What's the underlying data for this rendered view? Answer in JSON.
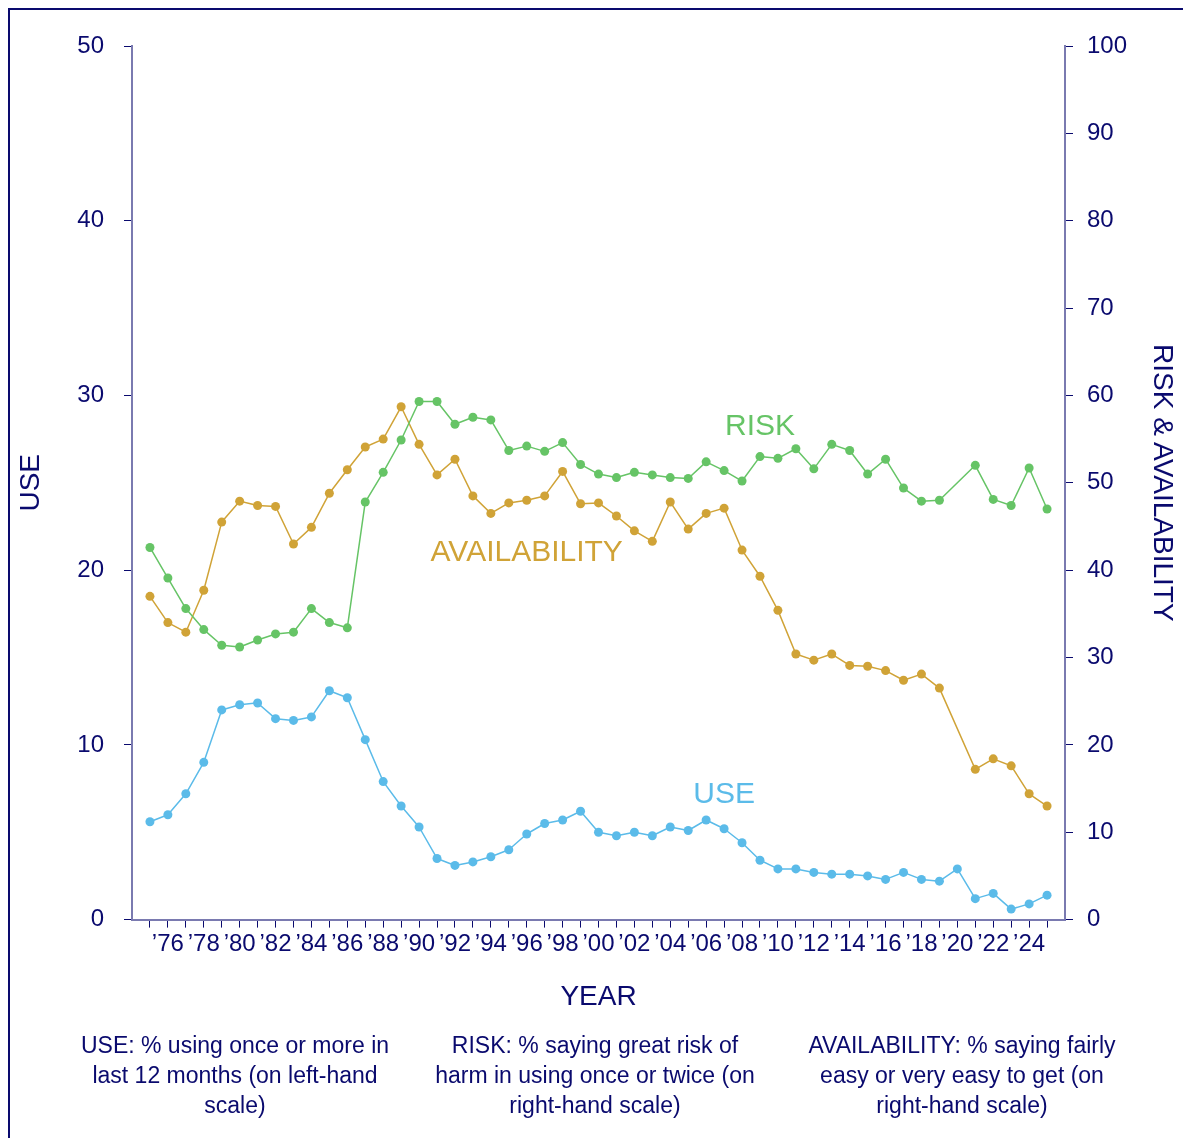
{
  "chart_data": {
    "type": "line",
    "xlabel": "YEAR",
    "ylabel": "USE",
    "y2label": "RISK & AVAILABILITY",
    "x": [
      1975,
      1976,
      1977,
      1978,
      1979,
      1980,
      1981,
      1982,
      1983,
      1984,
      1985,
      1986,
      1987,
      1988,
      1989,
      1990,
      1991,
      1992,
      1993,
      1994,
      1995,
      1996,
      1997,
      1998,
      1999,
      2000,
      2001,
      2002,
      2003,
      2004,
      2005,
      2006,
      2007,
      2008,
      2009,
      2010,
      2011,
      2012,
      2013,
      2014,
      2015,
      2016,
      2017,
      2018,
      2019,
      2020,
      2021,
      2022,
      2023,
      2024,
      2025
    ],
    "series": [
      {
        "name": "USE",
        "color": "#5bbbe9",
        "values": [
          5.6,
          6.0,
          7.2,
          9.0,
          12.0,
          12.3,
          12.4,
          11.5,
          11.4,
          11.6,
          13.1,
          12.7,
          10.3,
          7.9,
          6.5,
          5.3,
          3.5,
          3.1,
          3.3,
          3.6,
          4.0,
          4.9,
          5.5,
          5.7,
          6.2,
          5.0,
          4.8,
          5.0,
          4.8,
          5.3,
          5.1,
          5.7,
          5.2,
          4.4,
          3.4,
          2.9,
          2.9,
          2.7,
          2.6,
          2.6,
          2.5,
          2.3,
          2.7,
          2.3,
          2.2,
          2.9,
          1.2,
          1.5,
          0.6,
          0.9,
          1.4
        ]
      },
      {
        "name": "RISK",
        "color": "#66c466",
        "axis": "y2",
        "x": [
          1975,
          1976,
          1977,
          1978,
          1979,
          1980,
          1981,
          1982,
          1983,
          1984,
          1985,
          1986,
          1987,
          1988,
          1989,
          1990,
          1991,
          1992,
          1993,
          1994,
          1995,
          1996,
          1997,
          1998,
          1999,
          2000,
          2001,
          2002,
          2003,
          2004,
          2005,
          2006,
          2007,
          2008,
          2009,
          2010,
          2011,
          2012,
          2013,
          2014,
          2015,
          2016,
          2017,
          2018,
          2019,
          2021,
          2022,
          2023,
          2024,
          2025
        ],
        "values": [
          42.6,
          39.1,
          35.6,
          33.2,
          31.4,
          31.2,
          32.0,
          32.7,
          32.9,
          35.6,
          34.0,
          33.4,
          47.8,
          51.2,
          54.9,
          59.3,
          59.3,
          56.7,
          57.5,
          57.2,
          53.7,
          54.2,
          53.6,
          54.6,
          52.1,
          51.0,
          50.6,
          51.2,
          50.9,
          50.6,
          50.5,
          52.4,
          51.4,
          50.2,
          53.0,
          52.8,
          53.9,
          51.6,
          54.4,
          53.7,
          51.0,
          52.7,
          49.4,
          47.9,
          48.0,
          52.0,
          48.1,
          47.4,
          51.7,
          47.0
        ]
      },
      {
        "name": "AVAILABILITY",
        "color": "#d0a337",
        "axis": "y2",
        "x": [
          1975,
          1976,
          1977,
          1978,
          1979,
          1980,
          1981,
          1982,
          1983,
          1984,
          1985,
          1986,
          1987,
          1988,
          1989,
          1990,
          1991,
          1992,
          1993,
          1994,
          1995,
          1996,
          1997,
          1998,
          1999,
          2000,
          2001,
          2002,
          2003,
          2004,
          2005,
          2006,
          2007,
          2008,
          2009,
          2010,
          2011,
          2012,
          2013,
          2014,
          2015,
          2016,
          2017,
          2018,
          2019,
          2021,
          2022,
          2023,
          2024,
          2025
        ],
        "values": [
          37.0,
          34.0,
          32.9,
          37.7,
          45.5,
          47.9,
          47.4,
          47.3,
          43.0,
          44.9,
          48.8,
          51.5,
          54.1,
          55.0,
          58.7,
          54.4,
          50.9,
          52.7,
          48.5,
          46.5,
          47.7,
          48.0,
          48.5,
          51.3,
          47.6,
          47.7,
          46.2,
          44.5,
          43.3,
          47.8,
          44.7,
          46.5,
          47.1,
          42.3,
          39.3,
          35.4,
          30.4,
          29.7,
          30.4,
          29.1,
          29.0,
          28.5,
          27.4,
          28.1,
          26.5,
          17.2,
          18.4,
          17.6,
          14.4,
          13.0
        ]
      }
    ],
    "xlim": [
      1974,
      2026
    ],
    "xticks": [
      {
        "value": 1975,
        "label": null
      },
      {
        "value": 1976,
        "label": "’76"
      },
      {
        "value": 1977,
        "label": null
      },
      {
        "value": 1978,
        "label": "’78"
      },
      {
        "value": 1979,
        "label": null
      },
      {
        "value": 1980,
        "label": "’80"
      },
      {
        "value": 1981,
        "label": null
      },
      {
        "value": 1982,
        "label": "’82"
      },
      {
        "value": 1983,
        "label": null
      },
      {
        "value": 1984,
        "label": "’84"
      },
      {
        "value": 1985,
        "label": null
      },
      {
        "value": 1986,
        "label": "’86"
      },
      {
        "value": 1987,
        "label": null
      },
      {
        "value": 1988,
        "label": "’88"
      },
      {
        "value": 1989,
        "label": null
      },
      {
        "value": 1990,
        "label": "’90"
      },
      {
        "value": 1991,
        "label": null
      },
      {
        "value": 1992,
        "label": "’92"
      },
      {
        "value": 1993,
        "label": null
      },
      {
        "value": 1994,
        "label": "’94"
      },
      {
        "value": 1995,
        "label": null
      },
      {
        "value": 1996,
        "label": "’96"
      },
      {
        "value": 1997,
        "label": null
      },
      {
        "value": 1998,
        "label": "’98"
      },
      {
        "value": 1999,
        "label": null
      },
      {
        "value": 2000,
        "label": "’00"
      },
      {
        "value": 2001,
        "label": null
      },
      {
        "value": 2002,
        "label": "’02"
      },
      {
        "value": 2003,
        "label": null
      },
      {
        "value": 2004,
        "label": "’04"
      },
      {
        "value": 2005,
        "label": null
      },
      {
        "value": 2006,
        "label": "’06"
      },
      {
        "value": 2007,
        "label": null
      },
      {
        "value": 2008,
        "label": "’08"
      },
      {
        "value": 2009,
        "label": null
      },
      {
        "value": 2010,
        "label": "’10"
      },
      {
        "value": 2011,
        "label": null
      },
      {
        "value": 2012,
        "label": "’12"
      },
      {
        "value": 2013,
        "label": null
      },
      {
        "value": 2014,
        "label": "’14"
      },
      {
        "value": 2015,
        "label": null
      },
      {
        "value": 2016,
        "label": "’16"
      },
      {
        "value": 2017,
        "label": null
      },
      {
        "value": 2018,
        "label": "’18"
      },
      {
        "value": 2019,
        "label": null
      },
      {
        "value": 2020,
        "label": "’20"
      },
      {
        "value": 2021,
        "label": null
      },
      {
        "value": 2022,
        "label": "’22"
      },
      {
        "value": 2023,
        "label": null
      },
      {
        "value": 2024,
        "label": "’24"
      },
      {
        "value": 2025,
        "label": null
      }
    ],
    "ylim": [
      0,
      50
    ],
    "yticks": [
      0,
      10,
      20,
      30,
      40,
      50
    ],
    "y2lim": [
      0,
      100
    ],
    "y2ticks": [
      0,
      10,
      20,
      30,
      40,
      50,
      60,
      70,
      80,
      90,
      100
    ],
    "grid": false,
    "legend": false,
    "marker": "circle",
    "line_style": "solid",
    "annotations": [
      "USE: % using once or more in last 12 months (on left-hand scale)",
      "RISK: % saying great risk of harm in using once or twice (on right-hand scale)",
      "AVAILABILITY: % saying fairly easy or very easy to get (on right-hand scale)"
    ]
  }
}
